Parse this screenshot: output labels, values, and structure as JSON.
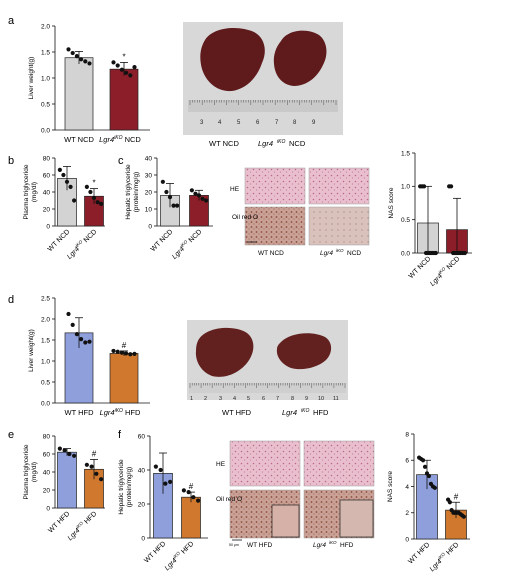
{
  "colors": {
    "wt_ncd": "#d3d3d3",
    "ko_ncd": "#8b1e28",
    "wt_hfd": "#8f9fdc",
    "ko_hfd": "#d0792e",
    "he_stain": "#e7b9c8",
    "oil_stain": "#c6988c",
    "liver": "#6a1d1f",
    "photo_bg": "#dcdcdc"
  },
  "panels": {
    "a": "a",
    "b": "b",
    "c": "c",
    "d": "d",
    "e": "e",
    "f": "f"
  },
  "histology": {
    "row_he": "HE",
    "row_oil": "Oil red O",
    "ncd_labels": [
      "WT NCD",
      "Lgr4",
      "iKO",
      "NCD"
    ],
    "hfd_labels": [
      "WT HFD",
      "Lgr4",
      "iKO",
      "HFD"
    ],
    "scale": "50 μm"
  },
  "photos": {
    "top_labels": [
      "WT NCD",
      "Lgr4",
      "iKO",
      "NCD"
    ],
    "top_ruler": [
      "3",
      "4",
      "5",
      "6",
      "7",
      "8",
      "9"
    ],
    "bottom_labels": [
      "WT HFD",
      "Lgr4",
      "iKO",
      "HFD"
    ],
    "bottom_ruler": [
      "1",
      "2",
      "3",
      "4",
      "5",
      "6",
      "7",
      "8",
      "9",
      "10",
      "11"
    ]
  },
  "chart_data": [
    {
      "id": "a",
      "type": "bar",
      "ylabel": "Liver weight(g)",
      "ylim": [
        0,
        2.0
      ],
      "yticks": [
        "0.0",
        "0.5",
        "1.0",
        "1.5",
        "2.0"
      ],
      "categories": [
        "WT NCD",
        "Lgr4iKO NCD"
      ],
      "cat_labels": [
        [
          "WT NCD"
        ],
        [
          "Lgr4",
          "iKO",
          "NCD"
        ]
      ],
      "values": [
        1.39,
        1.17
      ],
      "errors": [
        0.12,
        0.13
      ],
      "points": [
        [
          1.55,
          1.48,
          1.42,
          1.36,
          1.32,
          1.28
        ],
        [
          1.3,
          1.24,
          1.16,
          1.1,
          1.05,
          1.21
        ]
      ],
      "sig": [
        "",
        "*"
      ],
      "colors": [
        "#d3d3d3",
        "#8b1e28"
      ]
    },
    {
      "id": "b",
      "type": "bar",
      "ylabel": "Plasma triglyceride (mg/dl)",
      "ylim": [
        0,
        80
      ],
      "yticks": [
        "0",
        "20",
        "40",
        "60",
        "80"
      ],
      "categories": [
        "WT NCD",
        "Lgr4iKO NCD"
      ],
      "cat_labels": [
        [
          "WT NCD"
        ],
        [
          "Lgr4",
          "iKO",
          "NCD"
        ]
      ],
      "values": [
        56,
        35
      ],
      "errors": [
        14,
        9
      ],
      "points": [
        [
          66,
          60,
          52,
          46,
          30
        ],
        [
          46,
          40,
          33,
          28,
          26
        ]
      ],
      "sig": [
        "",
        "*"
      ],
      "colors": [
        "#d3d3d3",
        "#8b1e28"
      ]
    },
    {
      "id": "c",
      "type": "bar",
      "ylabel": "Hepatic triglyceride (protein/mg/g)",
      "ylim": [
        0,
        40
      ],
      "yticks": [
        "0",
        "10",
        "20",
        "30",
        "40"
      ],
      "categories": [
        "WT NCD",
        "Lgr4iKO NCD"
      ],
      "cat_labels": [
        [
          "WT NCD"
        ],
        [
          "Lgr4",
          "iKO",
          "NCD"
        ]
      ],
      "values": [
        18,
        18
      ],
      "errors": [
        7,
        3
      ],
      "points": [
        [
          26,
          20,
          17,
          12,
          12
        ],
        [
          21,
          19,
          18,
          16,
          15
        ]
      ],
      "sig": [
        "",
        ""
      ],
      "colors": [
        "#d3d3d3",
        "#8b1e28"
      ]
    },
    {
      "id": "c-nas",
      "type": "bar",
      "ylabel": "NAS score",
      "ylim": [
        0,
        1.5
      ],
      "yticks": [
        "0.0",
        "0.5",
        "1.0",
        "1.5"
      ],
      "categories": [
        "WT NCD",
        "Lgr4iKO NCD"
      ],
      "cat_labels": [
        [
          "WT NCD"
        ],
        [
          "Lgr4",
          "iKO",
          "NCD"
        ]
      ],
      "values": [
        0.45,
        0.35
      ],
      "errors": [
        0.55,
        0.47
      ],
      "points": [
        [
          1.0,
          1.0,
          1.0,
          0,
          0,
          0,
          0,
          0,
          0
        ],
        [
          1.0,
          1.0,
          0,
          0,
          0,
          0,
          0,
          0,
          0
        ]
      ],
      "sig": [
        "",
        ""
      ],
      "colors": [
        "#d3d3d3",
        "#8b1e28"
      ]
    },
    {
      "id": "d",
      "type": "bar",
      "ylabel": "Liver weight(g)",
      "ylim": [
        0,
        2.5
      ],
      "yticks": [
        "0.0",
        "0.5",
        "1.0",
        "1.5",
        "2.0",
        "2.5"
      ],
      "categories": [
        "WT HFD",
        "Lgr4iKO HFD"
      ],
      "cat_labels": [
        [
          "WT HFD"
        ],
        [
          "Lgr4",
          "iKO",
          "HFD"
        ]
      ],
      "values": [
        1.67,
        1.18
      ],
      "errors": [
        0.36,
        0.06
      ],
      "points": [
        [
          2.12,
          1.86,
          1.64,
          1.52,
          1.44,
          1.46
        ],
        [
          1.24,
          1.22,
          1.2,
          1.18,
          1.16,
          1.17
        ]
      ],
      "sig": [
        "",
        "#"
      ],
      "colors": [
        "#8f9fdc",
        "#d0792e"
      ]
    },
    {
      "id": "e",
      "type": "bar",
      "ylabel": "Plasma triglyceride (mg/dl)",
      "ylim": [
        0,
        80
      ],
      "yticks": [
        "0",
        "20",
        "40",
        "60",
        "80"
      ],
      "categories": [
        "WT HFD",
        "Lgr4iKO HFD"
      ],
      "cat_labels": [
        [
          "WT HFD"
        ],
        [
          "Lgr4",
          "iKO",
          "HFD"
        ]
      ],
      "values": [
        62,
        43
      ],
      "errors": [
        4,
        11
      ],
      "points": [
        [
          66,
          64,
          60,
          58
        ],
        [
          48,
          46,
          38,
          32
        ]
      ],
      "sig": [
        "",
        "#"
      ],
      "colors": [
        "#8f9fdc",
        "#d0792e"
      ]
    },
    {
      "id": "f",
      "type": "bar",
      "ylabel": "Hepatic triglyceride (protein/mg/g)",
      "ylim": [
        0,
        60
      ],
      "yticks": [
        "0",
        "20",
        "40",
        "60"
      ],
      "categories": [
        "WT HFD",
        "Lgr4iKO HFD"
      ],
      "cat_labels": [
        [
          "WT HFD"
        ],
        [
          "Lgr4",
          "iKO",
          "HFD"
        ]
      ],
      "values": [
        38,
        24
      ],
      "errors": [
        12,
        3
      ],
      "points": [
        [
          42,
          40,
          32,
          33
        ],
        [
          28,
          27,
          24,
          22
        ]
      ],
      "sig": [
        "",
        "#"
      ],
      "colors": [
        "#8f9fdc",
        "#d0792e"
      ]
    },
    {
      "id": "f-nas",
      "type": "bar",
      "ylabel": "NAS score",
      "ylim": [
        0,
        8
      ],
      "yticks": [
        "0",
        "2",
        "4",
        "6",
        "8"
      ],
      "categories": [
        "WT HFD",
        "Lgr4iKO HFD"
      ],
      "cat_labels": [
        [
          "WT HFD"
        ],
        [
          "Lgr4",
          "iKO",
          "HFD"
        ]
      ],
      "values": [
        4.9,
        2.2
      ],
      "errors": [
        1.1,
        0.6
      ],
      "points": [
        [
          6.2,
          6.1,
          6.0,
          5.5,
          5.0,
          4.8,
          4.2,
          4.0,
          3.9
        ],
        [
          3.0,
          2.8,
          2.2,
          2.0,
          2.0,
          2.0,
          2.0,
          1.9,
          1.8,
          1.7
        ]
      ],
      "sig": [
        "",
        "#"
      ],
      "colors": [
        "#8f9fdc",
        "#d0792e"
      ]
    }
  ]
}
